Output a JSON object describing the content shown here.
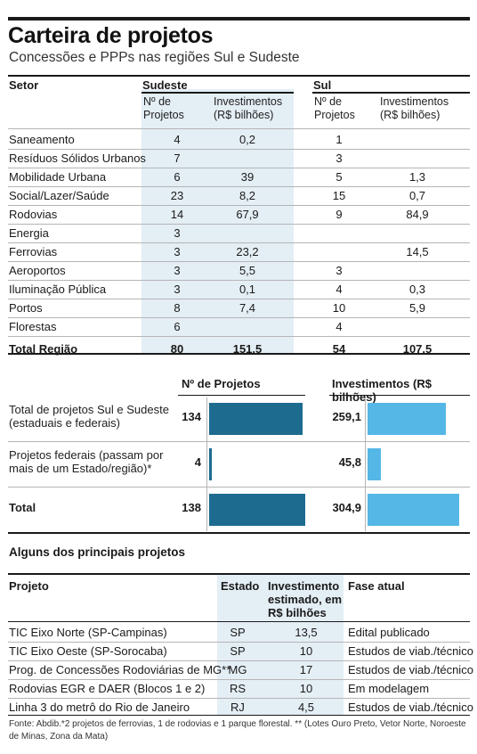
{
  "title": "Carteira de projetos",
  "subtitle": "Concessões e PPPs nas regiões Sul e Sudeste",
  "table1": {
    "setor_header": "Setor",
    "sudeste_header": "Sudeste",
    "sul_header": "Sul",
    "n_projetos_header": "Nº de Projetos",
    "investimentos_header": "Investimentos (R$ bilhões)",
    "rows": [
      {
        "setor": "Saneamento",
        "sudeste_n": "4",
        "sudeste_inv": "0,2",
        "sul_n": "1",
        "sul_inv": ""
      },
      {
        "setor": "Resíduos Sólidos Urbanos",
        "sudeste_n": "7",
        "sudeste_inv": "",
        "sul_n": "3",
        "sul_inv": ""
      },
      {
        "setor": "Mobilidade Urbana",
        "sudeste_n": "6",
        "sudeste_inv": "39",
        "sul_n": "5",
        "sul_inv": "1,3"
      },
      {
        "setor": "Social/Lazer/Saúde",
        "sudeste_n": "23",
        "sudeste_inv": "8,2",
        "sul_n": "15",
        "sul_inv": "0,7"
      },
      {
        "setor": "Rodovias",
        "sudeste_n": "14",
        "sudeste_inv": "67,9",
        "sul_n": "9",
        "sul_inv": "84,9"
      },
      {
        "setor": "Energia",
        "sudeste_n": "3",
        "sudeste_inv": "",
        "sul_n": "",
        "sul_inv": ""
      },
      {
        "setor": "Ferrovias",
        "sudeste_n": "3",
        "sudeste_inv": "23,2",
        "sul_n": "",
        "sul_inv": "14,5"
      },
      {
        "setor": "Aeroportos",
        "sudeste_n": "3",
        "sudeste_inv": "5,5",
        "sul_n": "3",
        "sul_inv": ""
      },
      {
        "setor": "Iluminação Pública",
        "sudeste_n": "3",
        "sudeste_inv": "0,1",
        "sul_n": "4",
        "sul_inv": "0,3"
      },
      {
        "setor": "Portos",
        "sudeste_n": "8",
        "sudeste_inv": "7,4",
        "sul_n": "10",
        "sul_inv": "5,9"
      },
      {
        "setor": "Florestas",
        "sudeste_n": "6",
        "sudeste_inv": "",
        "sul_n": "4",
        "sul_inv": ""
      }
    ],
    "total": {
      "setor": "Total Região",
      "sudeste_n": "80",
      "sudeste_inv": "151,5",
      "sul_n": "54",
      "sul_inv": "107,5"
    }
  },
  "bars": {
    "projetos_header": "Nº de Projetos",
    "investimentos_header": "Investimentos (R$ bilhões)",
    "project_color": "#1d6b8f",
    "investment_color": "#55b7e6",
    "rows": [
      {
        "label": "Total de projetos Sul e Sudeste (estaduais e federais)",
        "projetos": 134,
        "projetos_text": "134",
        "investimentos": 259.1,
        "investimentos_text": "259,1"
      },
      {
        "label": "Projetos federais (passam por mais de um Estado/região)*",
        "projetos": 4,
        "projetos_text": "4",
        "investimentos": 45.8,
        "investimentos_text": "45,8"
      },
      {
        "label": "Total",
        "projetos": 138,
        "projetos_text": "138",
        "investimentos": 304.9,
        "investimentos_text": "304,9"
      }
    ]
  },
  "table2": {
    "title": "Alguns dos principais projetos",
    "headers": {
      "projeto": "Projeto",
      "estado": "Estado",
      "investimento": "Investimento estimado, em R$ bilhões",
      "fase": "Fase atual"
    },
    "rows": [
      {
        "projeto": "TIC Eixo Norte (SP-Campinas)",
        "estado": "SP",
        "investimento": "13,5",
        "fase": "Edital publicado"
      },
      {
        "projeto": "TIC Eixo Oeste (SP-Sorocaba)",
        "estado": "SP",
        "investimento": "10",
        "fase": "Estudos de viab./técnico"
      },
      {
        "projeto": "Prog. de Concessões Rodoviárias de MG**",
        "estado": "MG",
        "investimento": "17",
        "fase": "Estudos de viab./técnico"
      },
      {
        "projeto": "Rodovias EGR e DAER (Blocos 1 e 2)",
        "estado": "RS",
        "investimento": "10",
        "fase": "Em modelagem"
      },
      {
        "projeto": "Linha 3 do metrô do Rio de Janeiro",
        "estado": "RJ",
        "investimento": "4,5",
        "fase": "Estudos de viab./técnico"
      }
    ]
  },
  "footnote": "Fonte: Abdib.*2 projetos de ferrovias, 1 de rodovias e 1 parque florestal.  ** (Lotes Ouro Preto, Vetor Norte, Noroeste de Minas, Zona da Mata)"
}
